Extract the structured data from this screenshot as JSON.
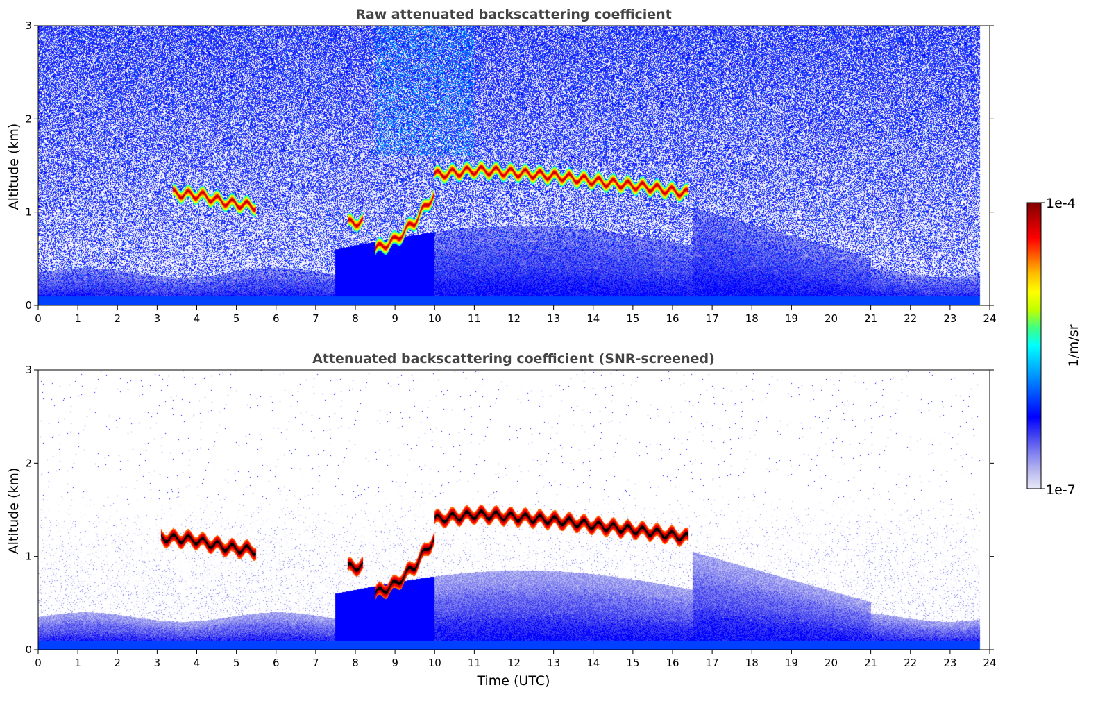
{
  "chart_data": [
    {
      "type": "heatmap",
      "title": "Raw attenuated backscattering coefficient",
      "xlabel": "",
      "ylabel": "Altitude (km)",
      "xlim": [
        0,
        24
      ],
      "ylim": [
        0,
        3
      ],
      "xticks": [
        "0",
        "1",
        "2",
        "3",
        "4",
        "5",
        "6",
        "7",
        "8",
        "9",
        "10",
        "11",
        "12",
        "13",
        "14",
        "15",
        "16",
        "17",
        "18",
        "19",
        "20",
        "21",
        "22",
        "23",
        "24"
      ],
      "yticks": [
        "0",
        "1",
        "2",
        "3"
      ],
      "noise": "high",
      "features": [
        {
          "kind": "cloud_layer",
          "x": [
            3.4,
            5.5
          ],
          "alt": [
            1.2,
            1.18,
            1.1,
            1.06
          ]
        },
        {
          "kind": "cloud_layer",
          "x": [
            7.8,
            8.2
          ],
          "alt": [
            0.88,
            0.9
          ]
        },
        {
          "kind": "cloud_layer",
          "x": [
            8.5,
            10.0
          ],
          "alt": [
            0.6,
            0.7,
            0.9,
            1.2
          ]
        },
        {
          "kind": "cloud_layer",
          "x": [
            10.0,
            16.4
          ],
          "alt": [
            1.4,
            1.45,
            1.42,
            1.38,
            1.32,
            1.27,
            1.2
          ]
        }
      ]
    },
    {
      "type": "heatmap",
      "title": "Attenuated backscattering coefficient (SNR-screened)",
      "xlabel": "Time (UTC)",
      "ylabel": "Altitude (km)",
      "xlim": [
        0,
        24
      ],
      "ylim": [
        0,
        3
      ],
      "xticks": [
        "0",
        "1",
        "2",
        "3",
        "4",
        "5",
        "6",
        "7",
        "8",
        "9",
        "10",
        "11",
        "12",
        "13",
        "14",
        "15",
        "16",
        "17",
        "18",
        "19",
        "20",
        "21",
        "22",
        "23",
        "24"
      ],
      "yticks": [
        "0",
        "1",
        "2",
        "3"
      ],
      "noise": "screened",
      "features": [
        {
          "kind": "cloud_layer",
          "x": [
            3.1,
            5.5
          ],
          "alt": [
            1.2,
            1.18,
            1.1,
            1.06
          ]
        },
        {
          "kind": "cloud_layer",
          "x": [
            7.8,
            8.2
          ],
          "alt": [
            0.88,
            0.9
          ]
        },
        {
          "kind": "cloud_layer",
          "x": [
            8.5,
            10.0
          ],
          "alt": [
            0.6,
            0.7,
            0.9,
            1.2
          ]
        },
        {
          "kind": "cloud_layer",
          "x": [
            10.0,
            16.4
          ],
          "alt": [
            1.4,
            1.45,
            1.42,
            1.38,
            1.32,
            1.27,
            1.2
          ]
        }
      ]
    }
  ],
  "colorbar": {
    "label": "1/m/sr",
    "max_label": "1e-4",
    "min_label": "1e-7",
    "scale": "log",
    "colors": [
      "#e8e8f8",
      "#b8b8f0",
      "#8080f0",
      "#4040f0",
      "#0000ff",
      "#0040ff",
      "#0080ff",
      "#00c0ff",
      "#00ffff",
      "#40ff80",
      "#c0ff00",
      "#ffff00",
      "#ffc000",
      "#ff6000",
      "#ff0000",
      "#c00000",
      "#800000"
    ]
  }
}
